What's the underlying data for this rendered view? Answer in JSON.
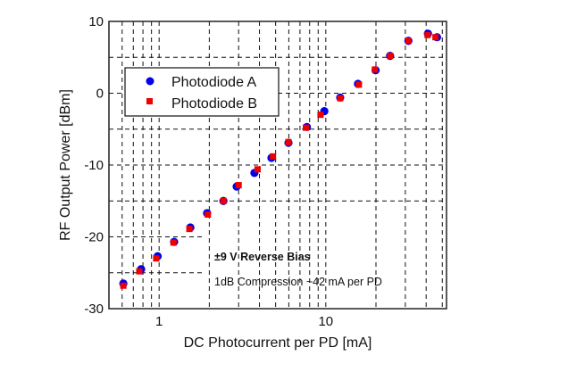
{
  "chart_data": {
    "type": "scatter",
    "title": "",
    "xlabel": "DC Photocurrent per PD [mA]",
    "ylabel": "RF Output Power [dBm]",
    "xscale": "log",
    "xlim": [
      0.5,
      53
    ],
    "ylim": [
      -30,
      10
    ],
    "xticks": [
      {
        "v": 1,
        "label": "1"
      },
      {
        "v": 10,
        "label": "10"
      }
    ],
    "yticks": [
      {
        "v": 10,
        "label": "10"
      },
      {
        "v": 0,
        "label": "0"
      },
      {
        "v": -10,
        "label": "-10"
      },
      {
        "v": -20,
        "label": "-20"
      },
      {
        "v": -30,
        "label": "-30"
      }
    ],
    "grid": true,
    "legend_position": "upper-left",
    "series": [
      {
        "name": "Photodiode A",
        "marker": "circle",
        "color": "#0000ee",
        "x": [
          0.61,
          0.78,
          0.98,
          1.23,
          1.54,
          1.94,
          2.43,
          2.92,
          3.73,
          4.72,
          5.97,
          7.7,
          9.8,
          12.2,
          15.6,
          19.9,
          24.3,
          31.3,
          41,
          46.5
        ],
        "y": [
          -26.5,
          -24.5,
          -22.7,
          -20.7,
          -18.7,
          -16.7,
          -15.0,
          -13.0,
          -11.1,
          -9.0,
          -6.9,
          -4.7,
          -2.5,
          -0.6,
          1.3,
          3.2,
          5.2,
          7.3,
          8.3,
          7.8
        ]
      },
      {
        "name": "Photodiode B",
        "marker": "square",
        "color": "#ee0000",
        "x": [
          0.61,
          0.76,
          0.96,
          1.22,
          1.52,
          1.96,
          2.43,
          3.0,
          3.9,
          4.82,
          5.97,
          7.6,
          9.3,
          12.2,
          15.8,
          19.7,
          24.3,
          31.3,
          40.8,
          45.5
        ],
        "y": [
          -26.8,
          -24.8,
          -23.0,
          -20.8,
          -18.9,
          -16.9,
          -15.0,
          -12.8,
          -10.6,
          -8.8,
          -6.8,
          -4.8,
          -3.0,
          -0.7,
          1.2,
          3.3,
          5.2,
          7.3,
          8.1,
          7.8
        ]
      }
    ],
    "annotations": [
      "±9 V Reverse Bias",
      "1dB Compression ~42 mA per PD"
    ]
  }
}
